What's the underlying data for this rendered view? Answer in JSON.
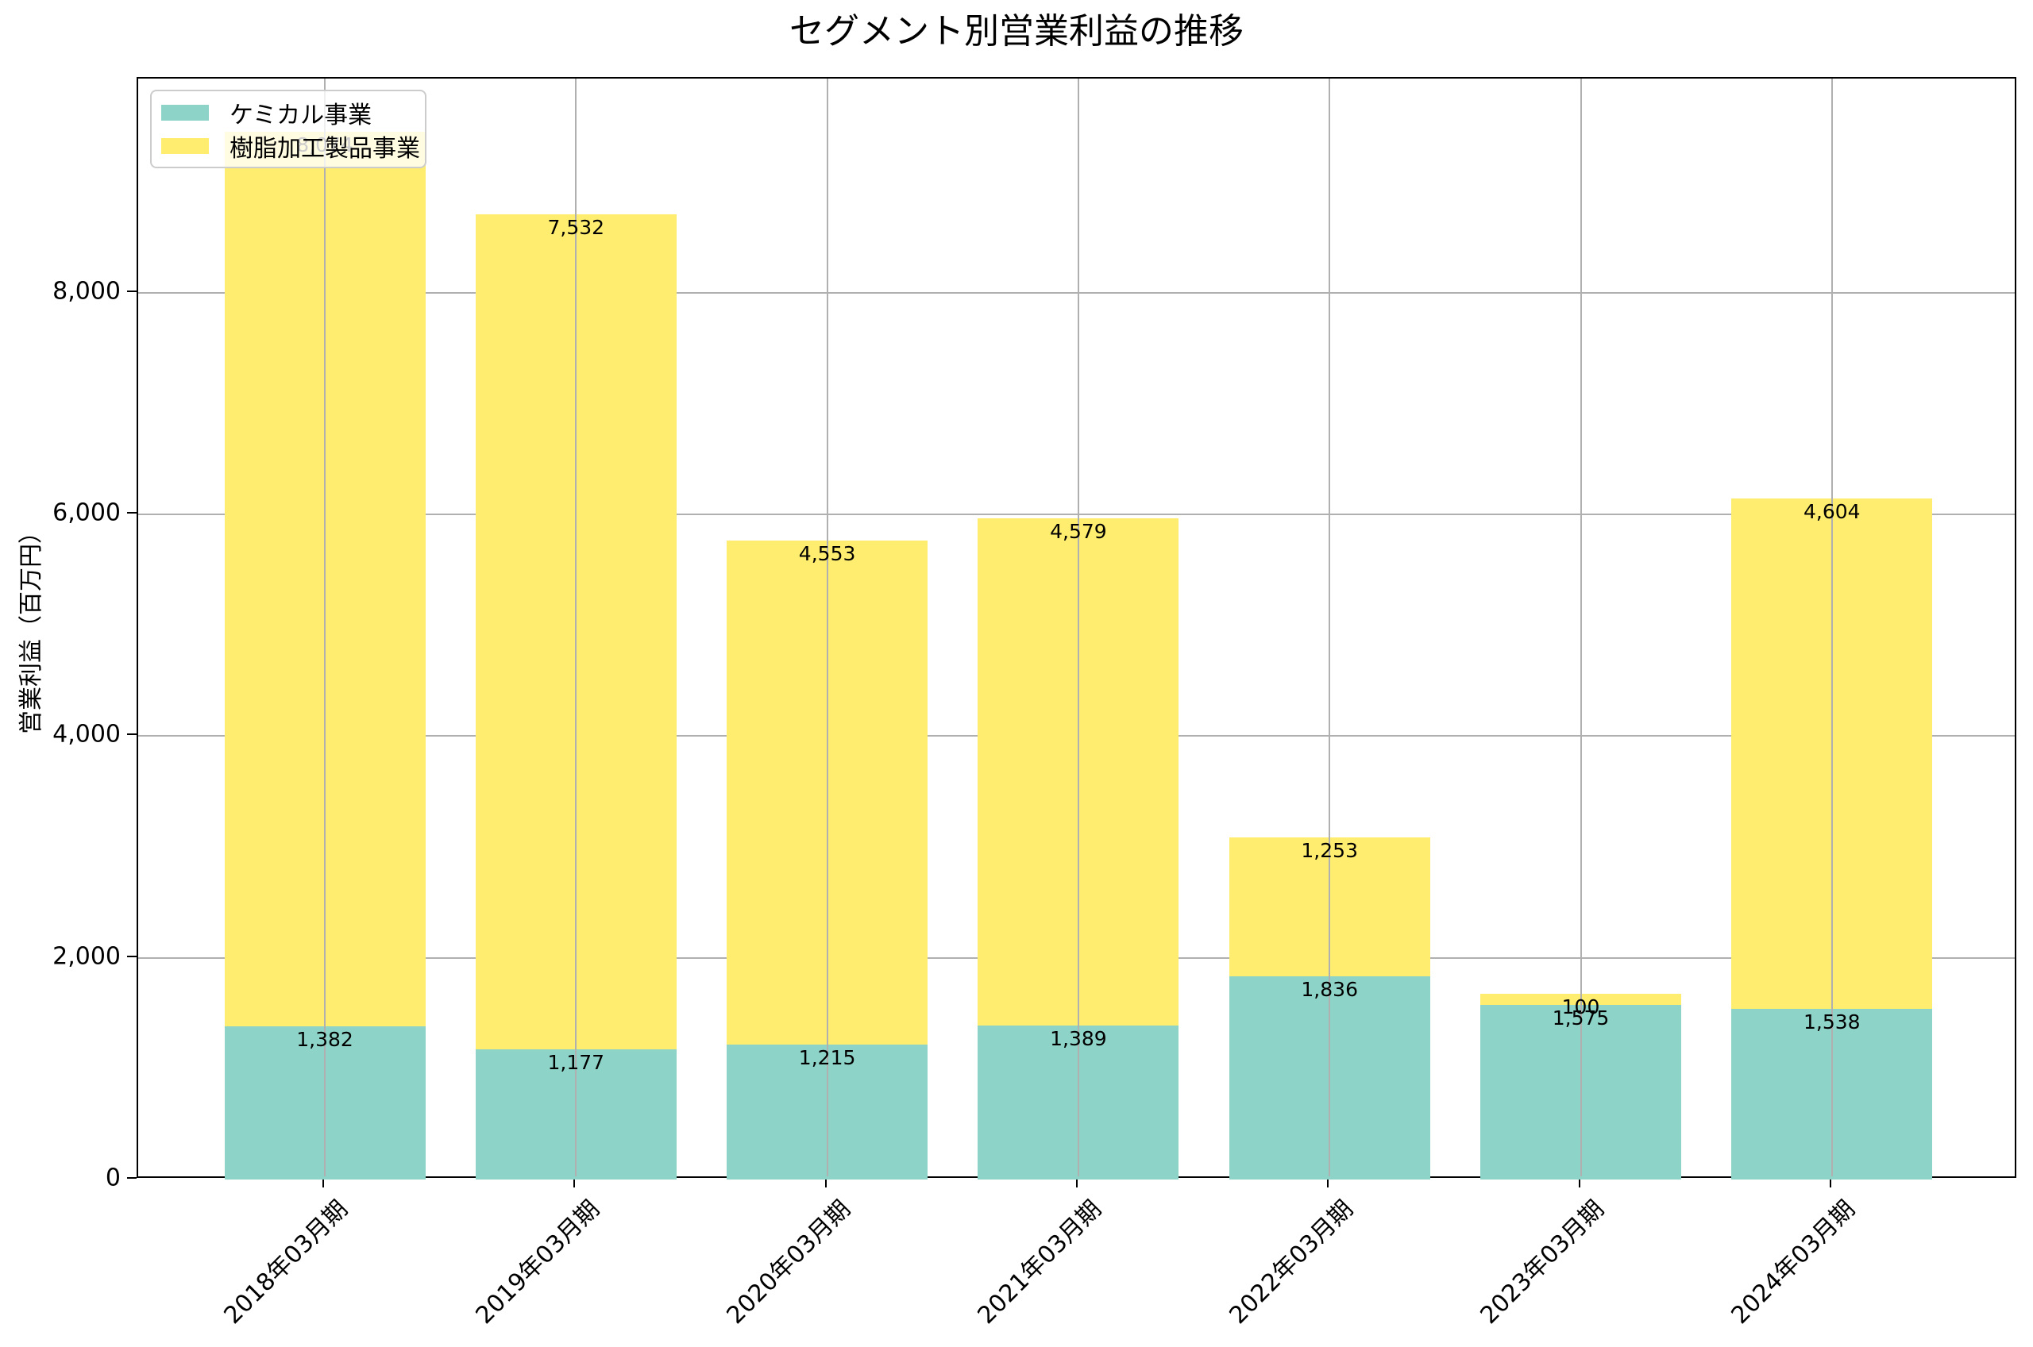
{
  "chart_data": {
    "type": "bar",
    "stacked": true,
    "title": "セグメント別営業利益の推移",
    "xlabel": "",
    "ylabel": "営業利益（百万円）",
    "ylim": [
      0,
      9933
    ],
    "yticks": [
      0,
      2000,
      4000,
      6000,
      8000
    ],
    "ytick_labels": [
      "0",
      "2,000",
      "4,000",
      "6,000",
      "8,000"
    ],
    "grid": true,
    "legend_position": "upper left",
    "categories": [
      "2018年03月期",
      "2019年03月期",
      "2020年03月期",
      "2021年03月期",
      "2022年03月期",
      "2023年03月期",
      "2024年03月期"
    ],
    "series": [
      {
        "name": "ケミカル事業",
        "color": "#8dd3c7",
        "values": [
          1382,
          1177,
          1215,
          1389,
          1836,
          1575,
          1538
        ],
        "labels": [
          "1,382",
          "1,177",
          "1,215",
          "1,389",
          "1,836",
          "1,575",
          "1,538"
        ]
      },
      {
        "name": "樹脂加工製品事業",
        "color": "#ffed6f",
        "values": [
          8074,
          7532,
          4553,
          4579,
          1253,
          100,
          4604
        ],
        "labels": [
          "8,074",
          "7,532",
          "4,553",
          "4,579",
          "1,253",
          "100",
          "4,604"
        ]
      }
    ]
  }
}
